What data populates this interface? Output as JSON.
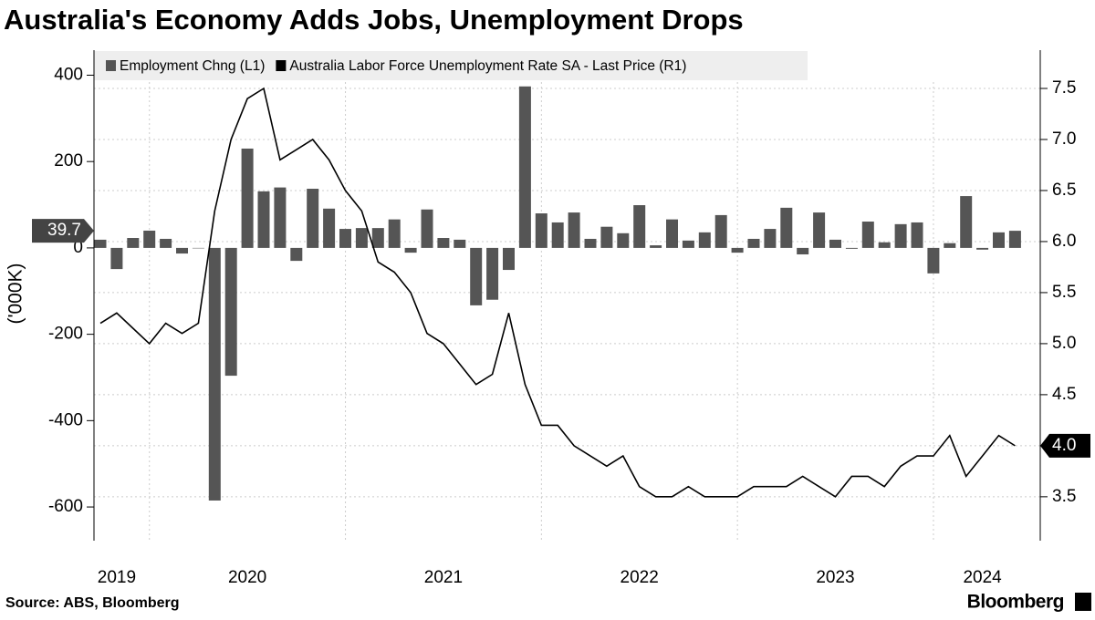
{
  "title": "Australia's Economy Adds Jobs, Unemployment Drops",
  "source": "Source: ABS, Bloomberg",
  "brand": "Bloomberg",
  "chart_data": {
    "type": "bar-line",
    "y_label": "('000K)",
    "categories": [
      null,
      "2019",
      null,
      null,
      null,
      null,
      null,
      null,
      null,
      "2020",
      null,
      null,
      null,
      null,
      null,
      null,
      null,
      null,
      null,
      null,
      null,
      "2021",
      null,
      null,
      null,
      null,
      null,
      null,
      null,
      null,
      null,
      null,
      null,
      "2022",
      null,
      null,
      null,
      null,
      null,
      null,
      null,
      null,
      null,
      null,
      null,
      "2023",
      null,
      null,
      null,
      null,
      null,
      null,
      null,
      null,
      "2024",
      null,
      null
    ],
    "series": [
      {
        "name": "Employment Chng (L1)",
        "color": "#555555",
        "axis": "y",
        "values": [
          19,
          -49,
          23,
          40,
          21,
          -13,
          -1,
          -585,
          -296,
          230,
          131,
          140,
          -30,
          137,
          91,
          44,
          46,
          46,
          66,
          -11,
          89,
          23,
          19,
          -133,
          -120,
          -51,
          374,
          80,
          59,
          82,
          21,
          49,
          34,
          99,
          6,
          66,
          17,
          36,
          76,
          -11,
          21,
          44,
          93,
          -15,
          82,
          19,
          -2,
          61,
          13,
          55,
          59,
          -59,
          11,
          120,
          -4,
          36,
          39.7
        ]
      },
      {
        "name": "Australia Labor Force Unemployment Rate SA - Last Price (R1)",
        "color": "#000000",
        "axis": "y2",
        "values": [
          5.2,
          5.3,
          5.15,
          5.0,
          5.2,
          5.1,
          5.2,
          6.3,
          7.0,
          7.4,
          7.5,
          6.8,
          6.9,
          7.0,
          6.8,
          6.5,
          6.3,
          5.8,
          5.7,
          5.5,
          5.1,
          5.0,
          4.8,
          4.6,
          4.7,
          5.3,
          4.6,
          4.2,
          4.2,
          4.0,
          3.9,
          3.8,
          3.9,
          3.6,
          3.5,
          3.5,
          3.6,
          3.5,
          3.5,
          3.5,
          3.6,
          3.6,
          3.6,
          3.7,
          3.6,
          3.5,
          3.7,
          3.7,
          3.6,
          3.8,
          3.9,
          3.9,
          4.1,
          3.7,
          3.9,
          4.1,
          4.0
        ],
        "last_label": "4.0"
      }
    ],
    "ylim": [
      -678,
      458
    ],
    "yticks": [
      -600,
      -400,
      -200,
      0,
      200,
      400
    ],
    "y2lim": [
      3.07,
      7.875
    ],
    "y2ticks": [
      3.5,
      {
        "value": 4,
        "label": "4.0"
      },
      4.5,
      {
        "value": 5,
        "label": "5.0"
      },
      5.5,
      {
        "value": 6,
        "label": "6.0"
      },
      6.5,
      {
        "value": 7,
        "label": "7.0"
      },
      7.5
    ],
    "grid": true
  }
}
